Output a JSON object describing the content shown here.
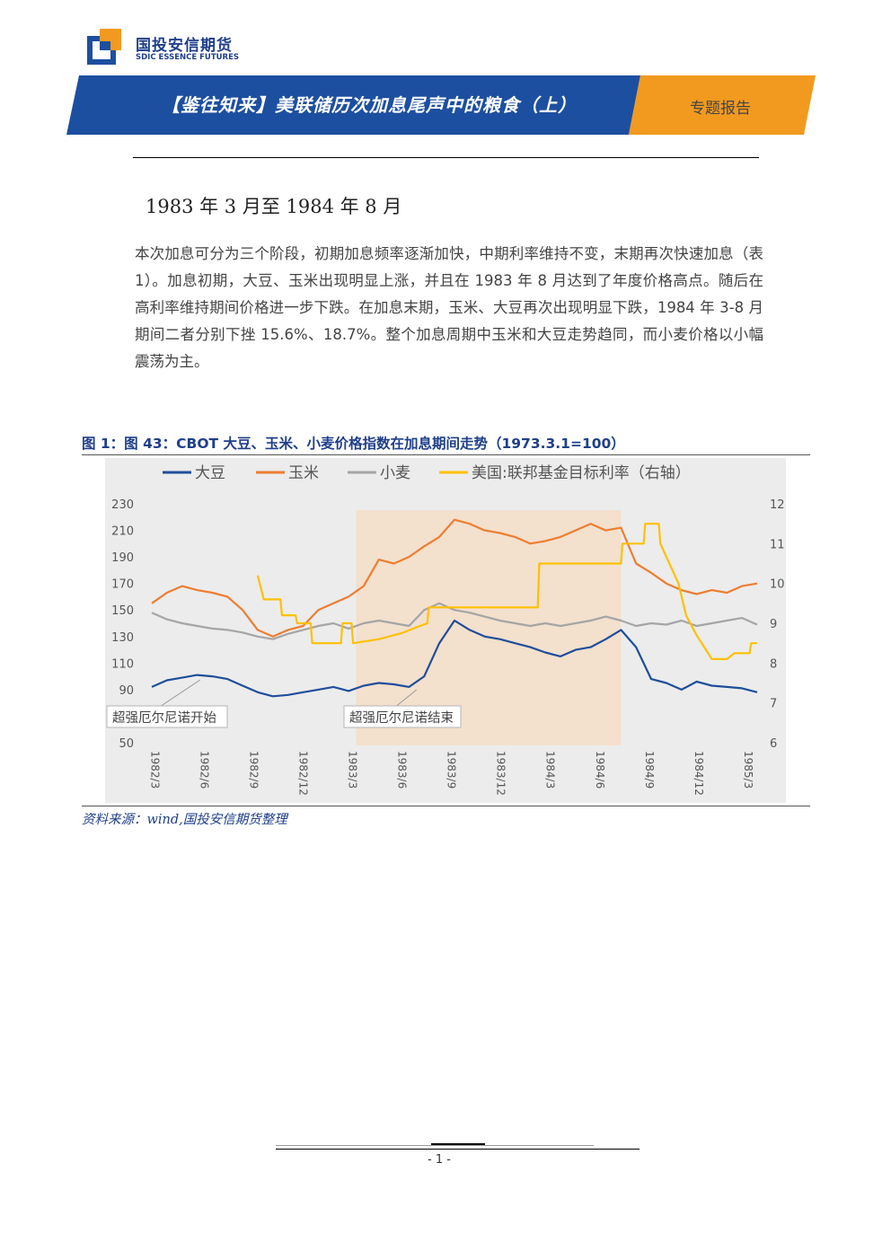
{
  "header": {
    "logo_cn": "国投安信期货",
    "logo_en": "SDIC ESSENCE FUTURES",
    "title": "【鉴往知来】美联储历次加息尾声中的粮食（上）",
    "tag": "专题报告",
    "colors": {
      "brand_blue": "#1d4fa0",
      "accent_orange": "#f29a1f"
    }
  },
  "section": {
    "title": "1983 年 3 月至 1984 年 8 月",
    "paragraph": "本次加息可分为三个阶段，初期加息频率逐渐加快，中期利率维持不变，末期再次快速加息（表 1）。加息初期，大豆、玉米出现明显上涨，并且在 1983 年 8 月达到了年度价格高点。随后在高利率维持期间价格进一步下跌。在加息末期，玉米、大豆再次出现明显下跌，1984 年 3-8 月期间二者分别下挫 15.6%、18.7%。整个加息周期中玉米和大豆走势趋同，而小麦价格以小幅震荡为主。"
  },
  "figure": {
    "title": "图 1：图 43：CBOT 大豆、玉米、小麦价格指数在加息期间走势（1973.3.1=100）",
    "source": "资料来源：wind,国投安信期货整理"
  },
  "chart_data": {
    "type": "line",
    "legend_position": "top",
    "legend": [
      "大豆",
      "玉米",
      "小麦",
      "美国:联邦基金目标利率（右轴）"
    ],
    "x_ticks": [
      "1982/3",
      "1982/6",
      "1982/9",
      "1982/12",
      "1983/3",
      "1983/6",
      "1983/9",
      "1983/12",
      "1984/3",
      "1984/6",
      "1984/9",
      "1984/12",
      "1985/3"
    ],
    "y_left": {
      "ticks": [
        50,
        70,
        90,
        110,
        130,
        150,
        170,
        190,
        210,
        230
      ],
      "range": [
        50,
        230
      ]
    },
    "y_right": {
      "ticks": [
        6,
        7,
        8,
        9,
        10,
        11,
        12
      ],
      "range": [
        6,
        12
      ]
    },
    "x_range": [
      0,
      40
    ],
    "shaded_region": {
      "from": 13.5,
      "to": 31
    },
    "annotations": [
      {
        "text": "超强厄尔尼诺开始",
        "x": 3.2
      },
      {
        "text": "超强厄尔尼诺结束",
        "x": 17.5
      }
    ],
    "series": [
      {
        "name": "大豆",
        "axis": "left",
        "color": "#1f4e9b",
        "points": [
          [
            0,
            92
          ],
          [
            1,
            97
          ],
          [
            2,
            99
          ],
          [
            3,
            101
          ],
          [
            4,
            100
          ],
          [
            5,
            98
          ],
          [
            6,
            93
          ],
          [
            7,
            88
          ],
          [
            8,
            85
          ],
          [
            9,
            86
          ],
          [
            10,
            88
          ],
          [
            11,
            90
          ],
          [
            12,
            92
          ],
          [
            13,
            89
          ],
          [
            14,
            93
          ],
          [
            15,
            95
          ],
          [
            16,
            94
          ],
          [
            17,
            92
          ],
          [
            18,
            100
          ],
          [
            19,
            125
          ],
          [
            20,
            142
          ],
          [
            21,
            135
          ],
          [
            22,
            130
          ],
          [
            23,
            128
          ],
          [
            24,
            125
          ],
          [
            25,
            122
          ],
          [
            26,
            118
          ],
          [
            27,
            115
          ],
          [
            28,
            120
          ],
          [
            29,
            122
          ],
          [
            30,
            128
          ],
          [
            31,
            135
          ],
          [
            32,
            122
          ],
          [
            33,
            98
          ],
          [
            34,
            95
          ],
          [
            35,
            90
          ],
          [
            36,
            96
          ],
          [
            37,
            93
          ],
          [
            38,
            92
          ],
          [
            39,
            91
          ],
          [
            40,
            88
          ]
        ]
      },
      {
        "name": "玉米",
        "axis": "left",
        "color": "#ed7d31",
        "points": [
          [
            0,
            155
          ],
          [
            1,
            163
          ],
          [
            2,
            168
          ],
          [
            3,
            165
          ],
          [
            4,
            163
          ],
          [
            5,
            160
          ],
          [
            6,
            150
          ],
          [
            7,
            135
          ],
          [
            8,
            130
          ],
          [
            9,
            135
          ],
          [
            10,
            138
          ],
          [
            11,
            150
          ],
          [
            12,
            155
          ],
          [
            13,
            160
          ],
          [
            14,
            168
          ],
          [
            15,
            188
          ],
          [
            16,
            185
          ],
          [
            17,
            190
          ],
          [
            18,
            198
          ],
          [
            19,
            205
          ],
          [
            20,
            218
          ],
          [
            21,
            215
          ],
          [
            22,
            210
          ],
          [
            23,
            208
          ],
          [
            24,
            205
          ],
          [
            25,
            200
          ],
          [
            26,
            202
          ],
          [
            27,
            205
          ],
          [
            28,
            210
          ],
          [
            29,
            215
          ],
          [
            30,
            210
          ],
          [
            31,
            212
          ],
          [
            32,
            185
          ],
          [
            33,
            178
          ],
          [
            34,
            170
          ],
          [
            35,
            165
          ],
          [
            36,
            162
          ],
          [
            37,
            165
          ],
          [
            38,
            163
          ],
          [
            39,
            168
          ],
          [
            40,
            170
          ]
        ]
      },
      {
        "name": "小麦",
        "axis": "left",
        "color": "#a5a5a5",
        "points": [
          [
            0,
            148
          ],
          [
            1,
            143
          ],
          [
            2,
            140
          ],
          [
            3,
            138
          ],
          [
            4,
            136
          ],
          [
            5,
            135
          ],
          [
            6,
            133
          ],
          [
            7,
            130
          ],
          [
            8,
            128
          ],
          [
            9,
            132
          ],
          [
            10,
            135
          ],
          [
            11,
            138
          ],
          [
            12,
            140
          ],
          [
            13,
            136
          ],
          [
            14,
            140
          ],
          [
            15,
            142
          ],
          [
            16,
            140
          ],
          [
            17,
            138
          ],
          [
            18,
            150
          ],
          [
            19,
            155
          ],
          [
            20,
            150
          ],
          [
            21,
            148
          ],
          [
            22,
            145
          ],
          [
            23,
            142
          ],
          [
            24,
            140
          ],
          [
            25,
            138
          ],
          [
            26,
            140
          ],
          [
            27,
            138
          ],
          [
            28,
            140
          ],
          [
            29,
            142
          ],
          [
            30,
            145
          ],
          [
            31,
            142
          ],
          [
            32,
            138
          ],
          [
            33,
            140
          ],
          [
            34,
            139
          ],
          [
            35,
            142
          ],
          [
            36,
            138
          ],
          [
            37,
            140
          ],
          [
            38,
            142
          ],
          [
            39,
            144
          ],
          [
            40,
            139
          ]
        ]
      },
      {
        "name": "美国:联邦基金目标利率（右轴）",
        "axis": "right",
        "color": "#ffc000",
        "points": [
          [
            7,
            10.2
          ],
          [
            7.4,
            9.6
          ],
          [
            8.5,
            9.6
          ],
          [
            8.6,
            9.2
          ],
          [
            9.5,
            9.2
          ],
          [
            9.6,
            9.0
          ],
          [
            10.5,
            9.0
          ],
          [
            10.6,
            8.5
          ],
          [
            12.5,
            8.5
          ],
          [
            12.6,
            9.0
          ],
          [
            13.2,
            9.0
          ],
          [
            13.3,
            8.5
          ],
          [
            15,
            8.6
          ],
          [
            16.5,
            8.75
          ],
          [
            17.5,
            8.9
          ],
          [
            18.2,
            9.0
          ],
          [
            18.3,
            9.4
          ],
          [
            25.5,
            9.4
          ],
          [
            25.6,
            10.5
          ],
          [
            31,
            10.5
          ],
          [
            31.1,
            11.0
          ],
          [
            32.5,
            11.0
          ],
          [
            32.6,
            11.5
          ],
          [
            33.5,
            11.5
          ],
          [
            33.6,
            11.0
          ],
          [
            34.8,
            10.0
          ],
          [
            35.3,
            9.2
          ],
          [
            36,
            8.7
          ],
          [
            37,
            8.1
          ],
          [
            38,
            8.1
          ],
          [
            38.5,
            8.25
          ],
          [
            39.5,
            8.25
          ],
          [
            39.6,
            8.5
          ],
          [
            40,
            8.5
          ]
        ]
      }
    ]
  },
  "footer": {
    "page": "- 1 -"
  }
}
